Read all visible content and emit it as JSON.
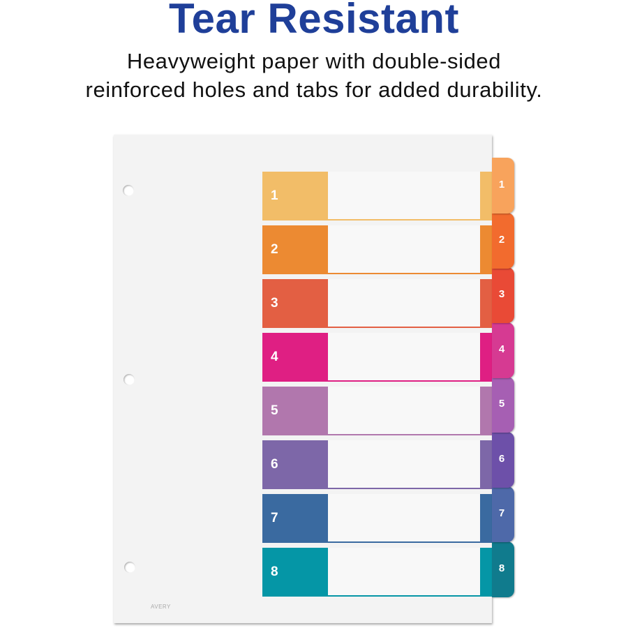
{
  "header": {
    "title": "Tear Resistant",
    "subtitle_lines": [
      "Heavyweight paper with double-sided",
      "reinforced holes and tabs for added durability."
    ]
  },
  "divider": {
    "brand_logo": "AVERY",
    "tabs": [
      {
        "label": "1",
        "color": "#f2bd68",
        "tab_color": "#f8a35c"
      },
      {
        "label": "2",
        "color": "#ec8a32",
        "tab_color": "#f26b2e"
      },
      {
        "label": "3",
        "color": "#e35f43",
        "tab_color": "#e94a36"
      },
      {
        "label": "4",
        "color": "#df1f83",
        "tab_color": "#d63a92"
      },
      {
        "label": "5",
        "color": "#b177ad",
        "tab_color": "#a65fb3"
      },
      {
        "label": "6",
        "color": "#7d67a8",
        "tab_color": "#6d50a9"
      },
      {
        "label": "7",
        "color": "#3a6aa0",
        "tab_color": "#4e69a9"
      },
      {
        "label": "8",
        "color": "#0596a6",
        "tab_color": "#107b8d"
      }
    ]
  }
}
